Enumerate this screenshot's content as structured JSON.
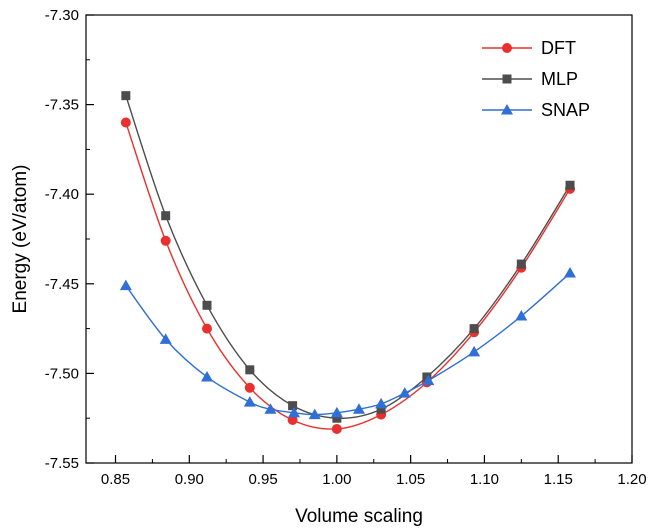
{
  "chart_data": {
    "type": "line",
    "xlabel": "Volume scaling",
    "ylabel": "Energy (eV/atom)",
    "xlim": [
      0.83,
      1.2
    ],
    "ylim": [
      -7.55,
      -7.3
    ],
    "xticks": [
      "0.85",
      "0.90",
      "0.95",
      "1.00",
      "1.05",
      "1.10",
      "1.15",
      "1.20"
    ],
    "yticks": [
      "-7.30",
      "-7.35",
      "-7.40",
      "-7.45",
      "-7.50",
      "-7.55"
    ],
    "grid": false,
    "legend_position": "top-right",
    "series": [
      {
        "name": "DFT",
        "color": "#e8312e",
        "marker": "circle",
        "x": [
          0.857,
          0.884,
          0.912,
          0.941,
          0.97,
          1.0,
          1.03,
          1.061,
          1.093,
          1.125,
          1.158
        ],
        "y": [
          -7.36,
          -7.426,
          -7.475,
          -7.508,
          -7.526,
          -7.531,
          -7.523,
          -7.505,
          -7.477,
          -7.441,
          -7.397
        ]
      },
      {
        "name": "MLP",
        "color": "#4d4d4d",
        "marker": "square",
        "x": [
          0.857,
          0.884,
          0.912,
          0.941,
          0.97,
          1.0,
          1.03,
          1.061,
          1.093,
          1.125,
          1.158
        ],
        "y": [
          -7.345,
          -7.412,
          -7.462,
          -7.498,
          -7.518,
          -7.525,
          -7.52,
          -7.502,
          -7.475,
          -7.439,
          -7.395
        ]
      },
      {
        "name": "SNAP",
        "color": "#2f6fd6",
        "marker": "triangle",
        "x": [
          0.857,
          0.884,
          0.912,
          0.941,
          0.955,
          0.971,
          0.985,
          1.0,
          1.015,
          1.03,
          1.046,
          1.062,
          1.093,
          1.125,
          1.158
        ],
        "y": [
          -7.451,
          -7.481,
          -7.502,
          -7.516,
          -7.52,
          -7.522,
          -7.523,
          -7.522,
          -7.52,
          -7.517,
          -7.511,
          -7.504,
          -7.488,
          -7.468,
          -7.444
        ]
      }
    ]
  }
}
